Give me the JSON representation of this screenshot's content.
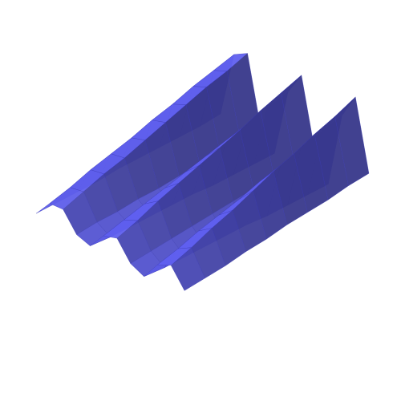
{
  "chart_data": {
    "type": "surface",
    "color": "#5c5ce6",
    "edge_color": "#3a3ab0",
    "z": [
      [
        0.04,
        0.14,
        0.15,
        0.05,
        0.03,
        0.13,
        0.16,
        0.06,
        0.03,
        0.14,
        0.18,
        0.08
      ],
      [
        0.05,
        0.18,
        0.2,
        0.07,
        0.03,
        0.17,
        0.21,
        0.08,
        0.03,
        0.18,
        0.23,
        0.1
      ],
      [
        0.06,
        0.23,
        0.25,
        0.08,
        0.04,
        0.21,
        0.27,
        0.1,
        0.04,
        0.23,
        0.29,
        0.12
      ],
      [
        0.07,
        0.27,
        0.29,
        0.1,
        0.05,
        0.25,
        0.32,
        0.12,
        0.05,
        0.27,
        0.34,
        0.15
      ],
      [
        0.09,
        0.31,
        0.34,
        0.11,
        0.06,
        0.29,
        0.37,
        0.14,
        0.06,
        0.31,
        0.4,
        0.17
      ],
      [
        0.1,
        0.36,
        0.39,
        0.13,
        0.07,
        0.33,
        0.42,
        0.16,
        0.07,
        0.36,
        0.46,
        0.2
      ],
      [
        0.11,
        0.4,
        0.44,
        0.15,
        0.07,
        0.37,
        0.47,
        0.18,
        0.07,
        0.4,
        0.51,
        0.22
      ],
      [
        0.12,
        0.45,
        0.49,
        0.16,
        0.08,
        0.41,
        0.53,
        0.2,
        0.08,
        0.45,
        0.57,
        0.24
      ],
      [
        0.13,
        0.49,
        0.53,
        0.18,
        0.09,
        0.45,
        0.58,
        0.22,
        0.09,
        0.49,
        0.62,
        0.27
      ],
      [
        0.15,
        0.53,
        0.58,
        0.19,
        0.1,
        0.49,
        0.63,
        0.24,
        0.1,
        0.53,
        0.68,
        0.29
      ]
    ]
  }
}
